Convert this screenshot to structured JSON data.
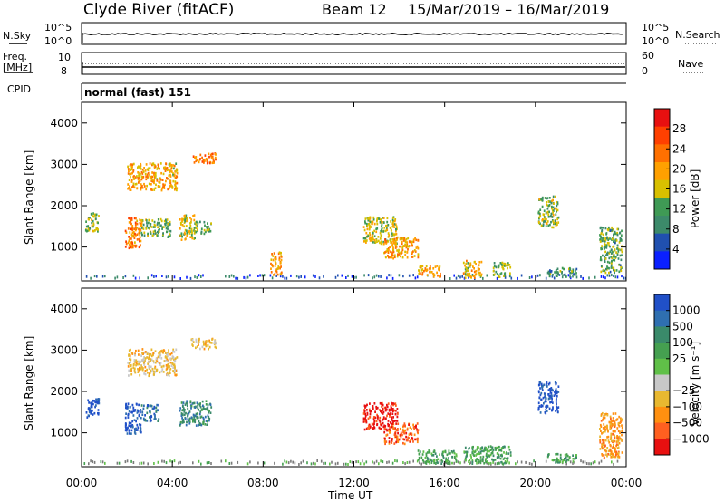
{
  "title": {
    "station": "Clyde River (fitACF)",
    "beam": "Beam 12",
    "dates": "15/Mar/2019 – 16/Mar/2019"
  },
  "strip_labels": {
    "nsky": "N.Sky",
    "nsearch": "N.Search",
    "freq_line1": "Freq.",
    "freq_line2": "[MHz]",
    "nave": "Nave",
    "cpid": "CPID",
    "cpid_value": "normal (fast) 151"
  },
  "strip_ticks": {
    "nsky_top": "10^5",
    "nsky_bottom": "10^0",
    "nsearch_top": "10^5",
    "nsearch_bottom": "10^0",
    "freq_top": "10",
    "freq_bottom": "8",
    "nave_top": "60",
    "nave_bottom": "0"
  },
  "x_axis": {
    "label": "Time UT",
    "ticks": [
      "00:00",
      "04:00",
      "08:00",
      "12:00",
      "16:00",
      "20:00",
      "00:00"
    ]
  },
  "colors": {
    "power_scale": [
      "#0a20ff",
      "#2050b0",
      "#3c8a6a",
      "#3f9a55",
      "#d8c000",
      "#ffa000",
      "#ff7000",
      "#ff4000",
      "#e81010"
    ],
    "velocity_scale": [
      "#2050c8",
      "#2f6fb0",
      "#3a8a6a",
      "#45a050",
      "#60c048",
      "#c8c8c8",
      "#e8b830",
      "#ff9010",
      "#ff6020",
      "#e81010"
    ],
    "ground": "#7a7a7a"
  },
  "chart_data": [
    {
      "type": "heatmap",
      "name": "power",
      "ylabel": "Slant Range [km]",
      "xlabel": "",
      "yticks": [
        "1000",
        "2000",
        "3000",
        "4000"
      ],
      "ylim": [
        180,
        4500
      ],
      "xlim": [
        0,
        24
      ],
      "colorbar": {
        "label": "Power [dB]",
        "ticks": [
          "4",
          "8",
          "12",
          "16",
          "20",
          "24",
          "28"
        ],
        "range": [
          0,
          32
        ]
      },
      "regions": [
        {
          "t0": 0.15,
          "t1": 0.75,
          "r0": 1400,
          "r1": 1850,
          "v": 15
        },
        {
          "t0": 1.9,
          "t1": 2.6,
          "r0": 1000,
          "r1": 1750,
          "v": 22
        },
        {
          "t0": 2.6,
          "t1": 3.4,
          "r0": 1300,
          "r1": 1700,
          "v": 14
        },
        {
          "t0": 3.3,
          "t1": 3.9,
          "r0": 1250,
          "r1": 1700,
          "v": 12
        },
        {
          "t0": 4.3,
          "t1": 5.0,
          "r0": 1200,
          "r1": 1800,
          "v": 16
        },
        {
          "t0": 5.0,
          "t1": 5.7,
          "r0": 1350,
          "r1": 1650,
          "v": 12
        },
        {
          "t0": 2.0,
          "t1": 4.2,
          "r0": 2400,
          "r1": 3050,
          "v": 19
        },
        {
          "t0": 4.8,
          "t1": 5.9,
          "r0": 3050,
          "r1": 3300,
          "v": 22
        },
        {
          "t0": 8.3,
          "t1": 8.8,
          "r0": 350,
          "r1": 900,
          "v": 20
        },
        {
          "t0": 12.4,
          "t1": 13.9,
          "r0": 1100,
          "r1": 1750,
          "v": 16
        },
        {
          "t0": 13.3,
          "t1": 14.8,
          "r0": 750,
          "r1": 1250,
          "v": 20
        },
        {
          "t0": 14.8,
          "t1": 15.8,
          "r0": 300,
          "r1": 580,
          "v": 20
        },
        {
          "t0": 16.8,
          "t1": 17.6,
          "r0": 280,
          "r1": 700,
          "v": 18
        },
        {
          "t0": 18.1,
          "t1": 18.9,
          "r0": 300,
          "r1": 650,
          "v": 13
        },
        {
          "t0": 20.1,
          "t1": 21.0,
          "r0": 1500,
          "r1": 2250,
          "v": 14
        },
        {
          "t0": 20.5,
          "t1": 21.8,
          "r0": 300,
          "r1": 520,
          "v": 10
        },
        {
          "t0": 22.8,
          "t1": 23.8,
          "r0": 400,
          "r1": 1500,
          "v": 12
        }
      ]
    },
    {
      "type": "heatmap",
      "name": "velocity",
      "ylabel": "Slant Range [km]",
      "xlabel": "Time UT",
      "yticks": [
        "1000",
        "2000",
        "3000",
        "4000"
      ],
      "ylim": [
        180,
        4500
      ],
      "xlim": [
        0,
        24
      ],
      "colorbar": {
        "label": "Velocity [m s⁻¹]",
        "ticks": [
          "1000",
          "500",
          "100",
          "25",
          "−25",
          "−100",
          "−500",
          "−1000"
        ]
      },
      "regions": [
        {
          "t0": 0.15,
          "t1": 0.75,
          "r0": 1400,
          "r1": 1850,
          "v": 0
        },
        {
          "t0": 1.9,
          "t1": 2.6,
          "r0": 1000,
          "r1": 1750,
          "v": 0
        },
        {
          "t0": 2.6,
          "t1": 3.4,
          "r0": 1300,
          "r1": 1700,
          "v": 1
        },
        {
          "t0": 4.3,
          "t1": 5.7,
          "r0": 1200,
          "r1": 1800,
          "v": 2
        },
        {
          "t0": 2.0,
          "t1": 4.2,
          "r0": 2400,
          "r1": 3050,
          "v": 6
        },
        {
          "t0": 4.8,
          "t1": 5.9,
          "r0": 3050,
          "r1": 3300,
          "v": 6
        },
        {
          "t0": 12.4,
          "t1": 13.9,
          "r0": 1100,
          "r1": 1750,
          "v": 9
        },
        {
          "t0": 13.3,
          "t1": 14.8,
          "r0": 750,
          "r1": 1250,
          "v": 8
        },
        {
          "t0": 14.8,
          "t1": 16.5,
          "r0": 280,
          "r1": 600,
          "v": 3
        },
        {
          "t0": 16.8,
          "t1": 18.9,
          "r0": 280,
          "r1": 700,
          "v": 3
        },
        {
          "t0": 20.1,
          "t1": 21.0,
          "r0": 1500,
          "r1": 2250,
          "v": 0
        },
        {
          "t0": 20.5,
          "t1": 21.8,
          "r0": 300,
          "r1": 520,
          "v": 3
        },
        {
          "t0": 22.8,
          "t1": 23.8,
          "r0": 400,
          "r1": 1500,
          "v": 7
        }
      ]
    }
  ]
}
